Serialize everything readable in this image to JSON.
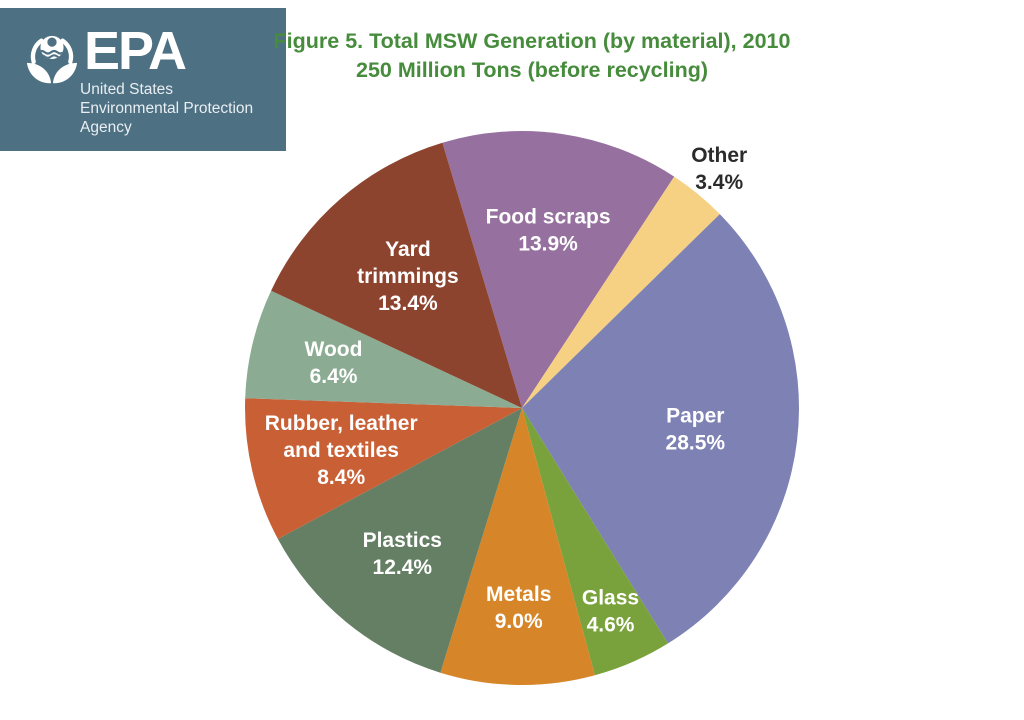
{
  "header": {
    "logo_text": "EPA",
    "agency_lines": [
      "United States",
      "Environmental Protection",
      "Agency"
    ],
    "bg_color": "#4d7082"
  },
  "title": {
    "line1": "Figure 5. Total MSW Generation (by material), 2010",
    "line2": "250 Million Tons (before recycling)",
    "color": "#468c3c"
  },
  "chart_data": {
    "type": "pie",
    "title": "Figure 5. Total MSW Generation (by material), 2010",
    "subtitle": "250 Million Tons (before recycling)",
    "total_label": "250 Million Tons",
    "year": "2010",
    "unit": "percent",
    "start_angle_deg": 106.7,
    "direction": "clockwise",
    "legend_position": "labels-on-slices",
    "slices": [
      {
        "label": "Food scraps",
        "value": 13.9,
        "color": "#96719f",
        "label_color": "#ffffff",
        "label_lines": [
          "Food scraps",
          "13.9%"
        ],
        "label_r": 0.65
      },
      {
        "label": "Other",
        "value": 3.4,
        "color": "#f6d183",
        "label_color": "#2b2b2b",
        "label_lines": [
          "Other",
          "3.4%"
        ],
        "label_r": 1.12
      },
      {
        "label": "Paper",
        "value": 28.5,
        "color": "#7d81b3",
        "label_color": "#ffffff",
        "label_lines": [
          "Paper",
          "28.5%"
        ],
        "label_r": 0.63
      },
      {
        "label": "Glass",
        "value": 4.6,
        "color": "#7aa23c",
        "label_color": "#ffffff",
        "label_lines": [
          "Glass",
          "4.6%"
        ],
        "label_r": 0.8
      },
      {
        "label": "Metals",
        "value": 9.0,
        "color": "#d68528",
        "label_color": "#ffffff",
        "label_lines": [
          "Metals",
          "9.0%"
        ],
        "label_r": 0.72
      },
      {
        "label": "Plastics",
        "value": 12.4,
        "color": "#647f63",
        "label_color": "#ffffff",
        "label_lines": [
          "Plastics",
          "12.4%"
        ],
        "label_r": 0.68
      },
      {
        "label": "Rubber, leather and textiles",
        "value": 8.4,
        "color": "#c95f35",
        "label_color": "#ffffff",
        "label_lines": [
          "Rubber, leather",
          "and textiles",
          "8.4%"
        ],
        "label_r": 0.67
      },
      {
        "label": "Wood",
        "value": 6.4,
        "color": "#8bab92",
        "label_color": "#ffffff",
        "label_lines": [
          "Wood",
          "6.4%"
        ],
        "label_r": 0.7
      },
      {
        "label": "Yard trimmings",
        "value": 13.4,
        "color": "#8d442f",
        "label_color": "#ffffff",
        "label_lines": [
          "Yard",
          "trimmings",
          "13.4%"
        ],
        "label_r": 0.63
      }
    ]
  }
}
